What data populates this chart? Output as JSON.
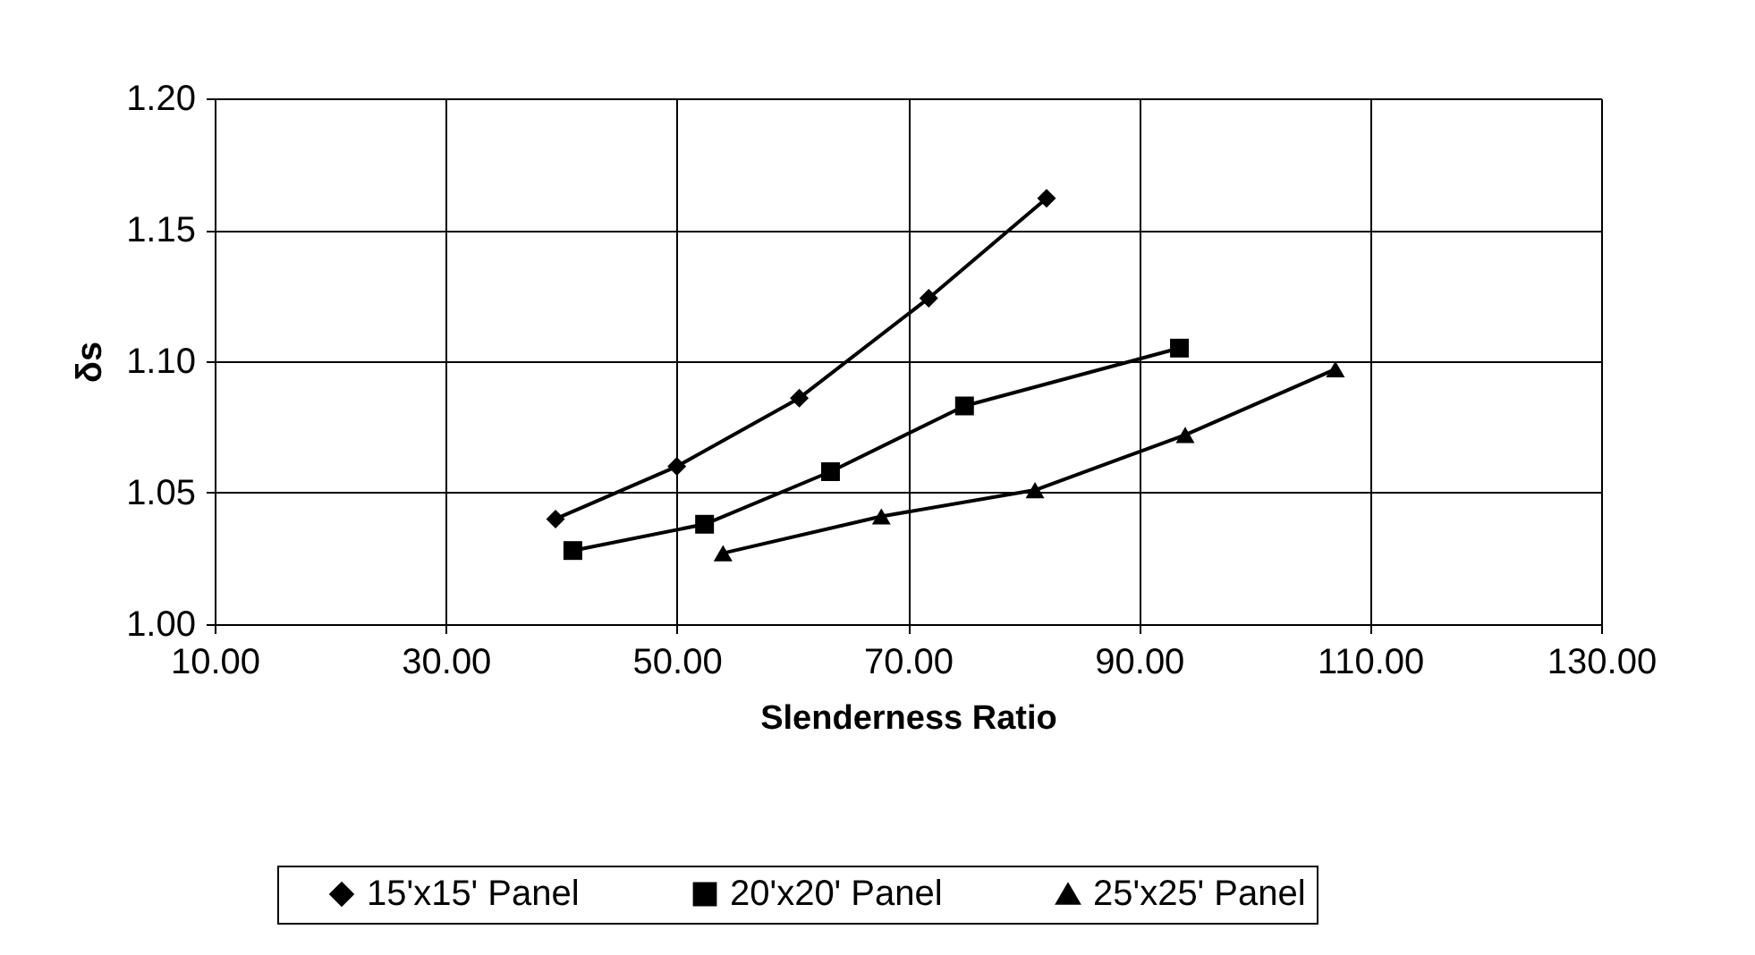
{
  "chart_data": {
    "type": "line",
    "xlabel": "Slenderness Ratio",
    "ylabel": "δs",
    "xlim": [
      10,
      130
    ],
    "xticks": [
      {
        "value": 10,
        "label": "10.00"
      },
      {
        "value": 30,
        "label": "30.00"
      },
      {
        "value": 50,
        "label": "50.00"
      },
      {
        "value": 70,
        "label": "70.00"
      },
      {
        "value": 90,
        "label": "90.00"
      },
      {
        "value": 110,
        "label": "110.00"
      },
      {
        "value": 130,
        "label": "130.00"
      }
    ],
    "ylim": [
      1.0,
      1.2
    ],
    "yticks": [
      {
        "value": 1.0,
        "label": "1.00"
      },
      {
        "value": 1.05,
        "label": "1.05"
      },
      {
        "value": 1.1,
        "label": "1.10"
      },
      {
        "value": 1.15,
        "label": "1.15"
      },
      {
        "value": 1.2,
        "label": "1.20"
      }
    ],
    "grid": true,
    "legend": "bottom",
    "line_style": "solid",
    "series": [
      {
        "name": "15'x15' Panel",
        "color": "#000000",
        "marker": "diamond",
        "x": [
          39.5,
          50.0,
          60.6,
          71.8,
          82.0
        ],
        "values": [
          1.04,
          1.06,
          1.086,
          1.124,
          1.162
        ]
      },
      {
        "name": "20'x20' Panel",
        "color": "#000000",
        "marker": "square",
        "x": [
          41.0,
          52.4,
          63.3,
          74.9,
          93.5
        ],
        "values": [
          1.028,
          1.038,
          1.058,
          1.083,
          1.105
        ]
      },
      {
        "name": "25'x25' Panel",
        "color": "#000000",
        "marker": "triangle",
        "x": [
          54.0,
          67.7,
          81.0,
          94.0,
          107.0
        ],
        "values": [
          1.027,
          1.041,
          1.051,
          1.072,
          1.097
        ]
      }
    ]
  }
}
